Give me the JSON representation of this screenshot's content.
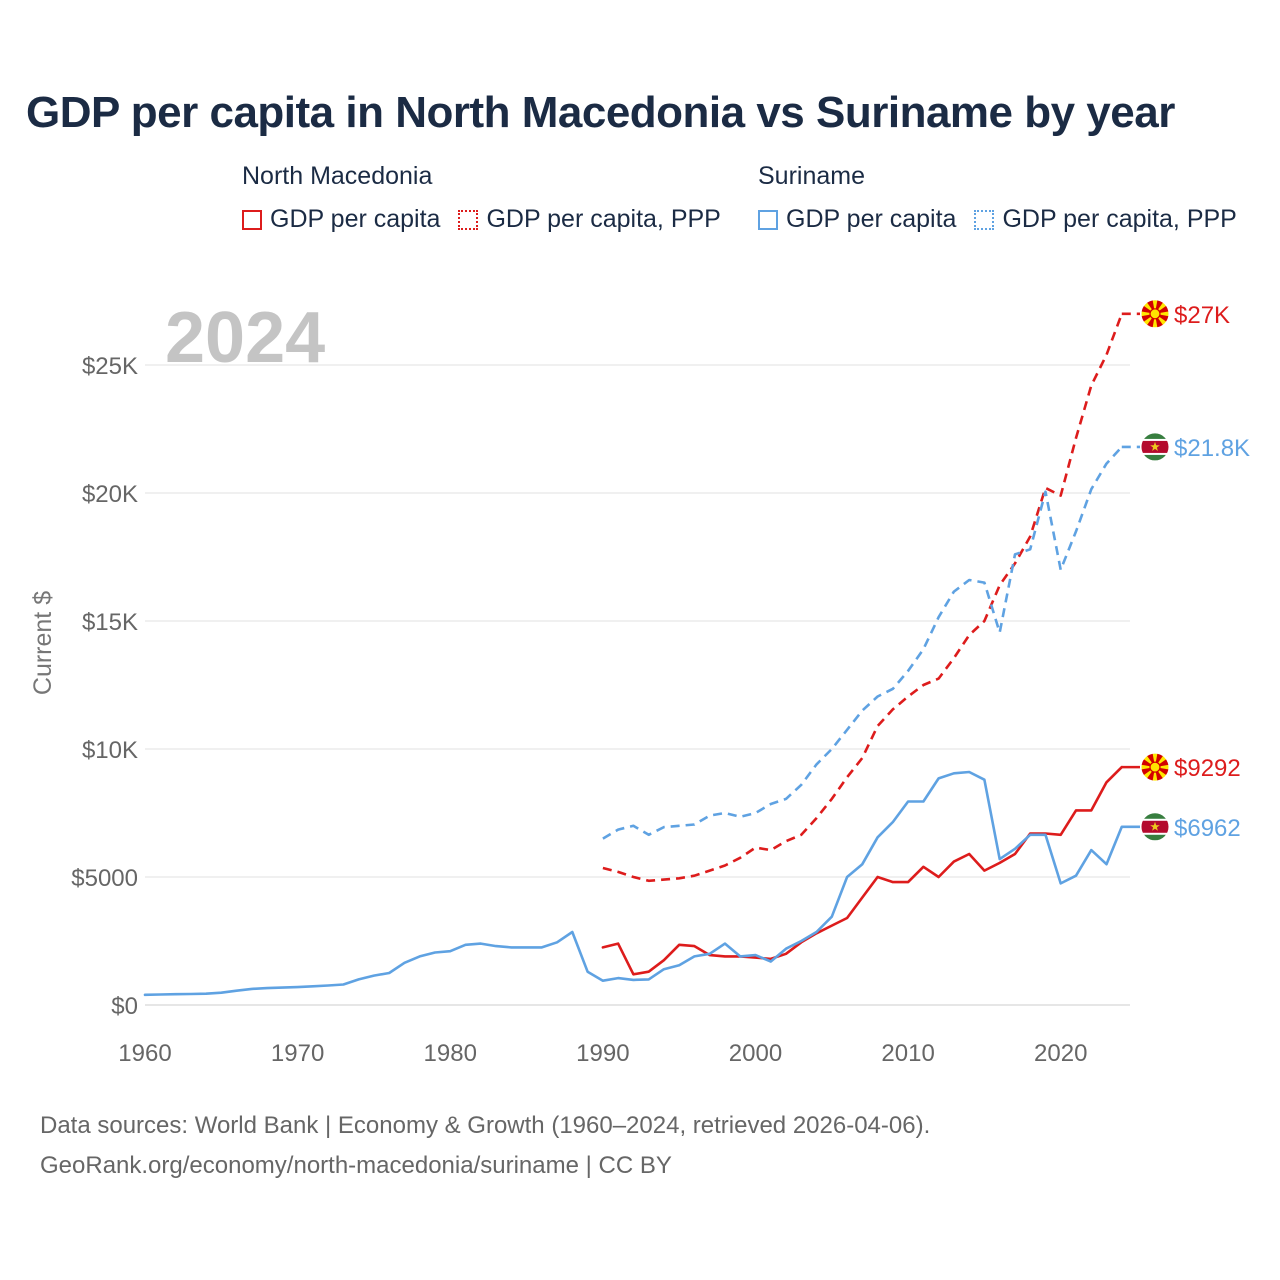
{
  "title": "GDP per capita in North Macedonia vs Suriname by year",
  "legend": {
    "groups": [
      {
        "name": "North Macedonia",
        "items": [
          "GDP per capita",
          "GDP per capita, PPP"
        ],
        "color": "#dd1c1c"
      },
      {
        "name": "Suriname",
        "items": [
          "GDP per capita",
          "GDP per capita, PPP"
        ],
        "color": "#5fa2e2"
      }
    ]
  },
  "footer": {
    "line1": "Data sources: World Bank | Economy & Growth (1960–2024, retrieved 2026-04-06).",
    "line2": "GeoRank.org/economy/north-macedonia/suriname | CC BY"
  },
  "chart_data": {
    "type": "line",
    "title": "GDP per capita in North Macedonia vs Suriname by year",
    "year_label": "2024",
    "xlabel": "",
    "ylabel": "Current $",
    "xlim": [
      1960,
      2024
    ],
    "ylim": [
      0,
      27000
    ],
    "x_ticks": [
      1960,
      1970,
      1980,
      1990,
      2000,
      2010,
      2020
    ],
    "y_ticks": [
      {
        "value": 0,
        "label": "$0"
      },
      {
        "value": 5000,
        "label": "$5000"
      },
      {
        "value": 10000,
        "label": "$10K"
      },
      {
        "value": 15000,
        "label": "$15K"
      },
      {
        "value": 20000,
        "label": "$20K"
      },
      {
        "value": 25000,
        "label": "$25K"
      }
    ],
    "series": [
      {
        "name": "North Macedonia GDP per capita",
        "country": "North Macedonia",
        "color": "#dd1c1c",
        "dashed": false,
        "end_label": "$9292",
        "flag": "north-macedonia",
        "x": [
          1990,
          1991,
          1992,
          1993,
          1994,
          1995,
          1996,
          1997,
          1998,
          1999,
          2000,
          2001,
          2002,
          2003,
          2004,
          2005,
          2006,
          2007,
          2008,
          2009,
          2010,
          2011,
          2012,
          2013,
          2014,
          2015,
          2016,
          2017,
          2018,
          2019,
          2020,
          2021,
          2022,
          2023,
          2024
        ],
        "values": [
          2250,
          2400,
          1200,
          1300,
          1750,
          2350,
          2300,
          1950,
          1900,
          1900,
          1850,
          1800,
          2000,
          2450,
          2800,
          3100,
          3400,
          4200,
          5000,
          4800,
          4800,
          5400,
          5000,
          5600,
          5900,
          5250,
          5550,
          5900,
          6700,
          6700,
          6650,
          7600,
          7600,
          8700,
          9292
        ]
      },
      {
        "name": "North Macedonia GDP per capita, PPP",
        "country": "North Macedonia",
        "color": "#dd1c1c",
        "dashed": true,
        "end_label": "$27K",
        "flag": "north-macedonia",
        "x": [
          1990,
          1991,
          1992,
          1993,
          1994,
          1995,
          1996,
          1997,
          1998,
          1999,
          2000,
          2001,
          2002,
          2003,
          2004,
          2005,
          2006,
          2007,
          2008,
          2009,
          2010,
          2011,
          2012,
          2013,
          2014,
          2015,
          2016,
          2017,
          2018,
          2019,
          2020,
          2021,
          2022,
          2023,
          2024
        ],
        "values": [
          5350,
          5200,
          5000,
          4850,
          4900,
          4950,
          5050,
          5250,
          5450,
          5750,
          6150,
          6050,
          6400,
          6650,
          7300,
          8050,
          8900,
          9650,
          10900,
          11550,
          12050,
          12500,
          12750,
          13550,
          14450,
          15000,
          16400,
          17250,
          18300,
          20200,
          19900,
          22150,
          24200,
          25400,
          27000
        ]
      },
      {
        "name": "Suriname GDP per capita",
        "country": "Suriname",
        "color": "#5fa2e2",
        "dashed": false,
        "end_label": "$6962",
        "flag": "suriname",
        "x": [
          1960,
          1961,
          1962,
          1963,
          1964,
          1965,
          1966,
          1967,
          1968,
          1969,
          1970,
          1971,
          1972,
          1973,
          1974,
          1975,
          1976,
          1977,
          1978,
          1979,
          1980,
          1981,
          1982,
          1983,
          1984,
          1985,
          1986,
          1987,
          1988,
          1989,
          1990,
          1991,
          1992,
          1993,
          1994,
          1995,
          1996,
          1997,
          1998,
          1999,
          2000,
          2001,
          2002,
          2003,
          2004,
          2005,
          2006,
          2007,
          2008,
          2009,
          2010,
          2011,
          2012,
          2013,
          2014,
          2015,
          2016,
          2017,
          2018,
          2019,
          2020,
          2021,
          2022,
          2023,
          2024
        ],
        "values": [
          400,
          410,
          420,
          430,
          440,
          480,
          560,
          630,
          660,
          680,
          700,
          730,
          760,
          800,
          1000,
          1150,
          1250,
          1650,
          1900,
          2050,
          2100,
          2350,
          2400,
          2300,
          2250,
          2250,
          2250,
          2450,
          2850,
          1300,
          950,
          1050,
          980,
          1000,
          1400,
          1550,
          1900,
          2000,
          2400,
          1900,
          1950,
          1700,
          2200,
          2500,
          2850,
          3450,
          5000,
          5500,
          6550,
          7150,
          7950,
          7950,
          8850,
          9050,
          9100,
          8800,
          5700,
          6100,
          6650,
          6650,
          4750,
          5050,
          6050,
          5500,
          6962
        ]
      },
      {
        "name": "Suriname GDP per capita, PPP",
        "country": "Suriname",
        "color": "#5fa2e2",
        "dashed": true,
        "end_label": "$21.8K",
        "flag": "suriname",
        "x": [
          1990,
          1991,
          1992,
          1993,
          1994,
          1995,
          1996,
          1997,
          1998,
          1999,
          2000,
          2001,
          2002,
          2003,
          2004,
          2005,
          2006,
          2007,
          2008,
          2009,
          2010,
          2011,
          2012,
          2013,
          2014,
          2015,
          2016,
          2017,
          2018,
          2019,
          2020,
          2021,
          2022,
          2023,
          2024
        ],
        "values": [
          6500,
          6850,
          7000,
          6650,
          6950,
          7000,
          7050,
          7400,
          7500,
          7350,
          7500,
          7850,
          8050,
          8600,
          9400,
          10000,
          10750,
          11500,
          12050,
          12350,
          13050,
          13900,
          15150,
          16150,
          16600,
          16500,
          14550,
          17600,
          17800,
          20050,
          17000,
          18500,
          20150,
          21150,
          21800
        ]
      }
    ]
  }
}
